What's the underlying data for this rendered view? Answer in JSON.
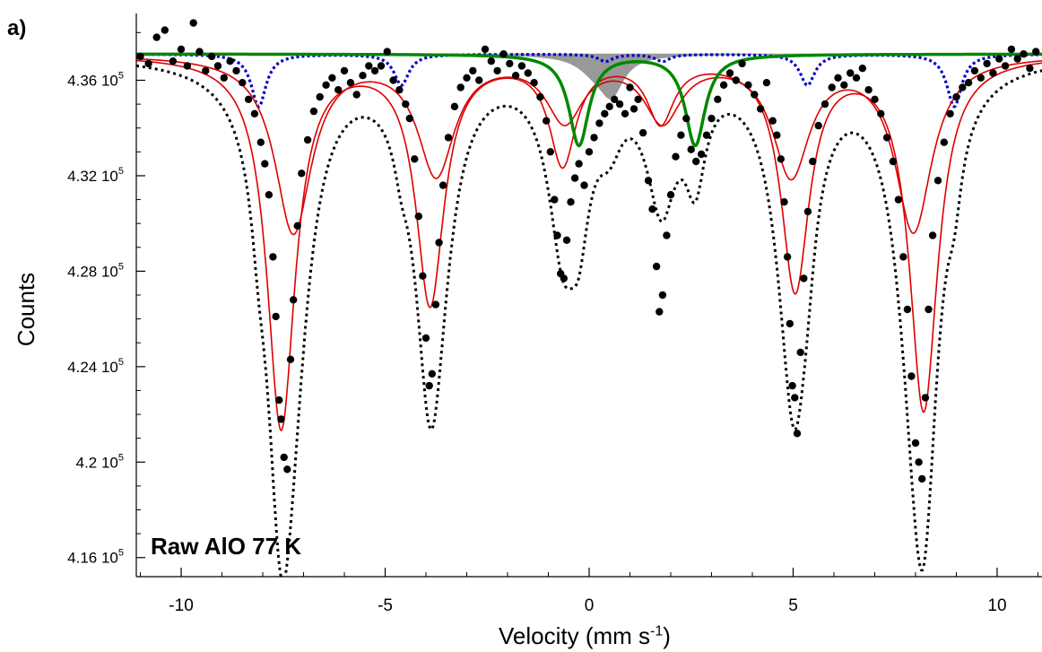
{
  "panel_label": "a)",
  "chart_data": {
    "type": "scatter",
    "title": "",
    "annotation": "Raw AlO 77 K",
    "xlabel_main": "Velocity (mm s",
    "xlabel_exp": "-1",
    "xlabel_close": ")",
    "ylabel": "Counts",
    "xlim": [
      -11.1,
      11.1
    ],
    "ylim": [
      415200,
      438800
    ],
    "x_ticks": [
      -10,
      -5,
      0,
      5,
      10
    ],
    "x_tick_labels": [
      "-10",
      "-5",
      "0",
      "5",
      "10"
    ],
    "y_ticks": [
      416000,
      420000,
      424000,
      428000,
      432000,
      436000
    ],
    "y_tick_labels": [
      {
        "mant": "4.16",
        "exp": "5"
      },
      {
        "mant": "4.2",
        "exp": "5"
      },
      {
        "mant": "4.24",
        "exp": "5"
      },
      {
        "mant": "4.28",
        "exp": "5"
      },
      {
        "mant": "4.32",
        "exp": "5"
      },
      {
        "mant": "4.36",
        "exp": "5"
      }
    ],
    "grid": false,
    "baseline": 437100,
    "colors": {
      "data": "#000000",
      "total_fit": "#000000",
      "sextet": "#dd0000",
      "doublet": "#008800",
      "minor_sextet": "#0000cc",
      "shaded": "#999999"
    },
    "components": [
      {
        "name": "sextet A",
        "style": "sextet",
        "lines": [
          {
            "x": -7.55,
            "depth": 15600,
            "w": 0.42
          },
          {
            "x": -3.9,
            "depth": 10300,
            "w": 0.42
          },
          {
            "x": -0.65,
            "depth": 4400,
            "w": 0.4
          },
          {
            "x": 1.75,
            "depth": 2600,
            "w": 0.4
          },
          {
            "x": 5.05,
            "depth": 9700,
            "w": 0.42
          },
          {
            "x": 8.2,
            "depth": 14800,
            "w": 0.42
          }
        ]
      },
      {
        "name": "sextet B",
        "style": "sextet",
        "lines": [
          {
            "x": -7.25,
            "depth": 7400,
            "w": 0.55
          },
          {
            "x": -3.75,
            "depth": 4900,
            "w": 0.55
          },
          {
            "x": -0.6,
            "depth": 2600,
            "w": 0.55
          },
          {
            "x": 1.8,
            "depth": 2600,
            "w": 0.55
          },
          {
            "x": 4.95,
            "depth": 4900,
            "w": 0.55
          },
          {
            "x": 7.95,
            "depth": 7300,
            "w": 0.55
          }
        ]
      },
      {
        "name": "doublet",
        "style": "doublet",
        "lines": [
          {
            "x": -0.25,
            "depth": 3800,
            "w": 0.3
          },
          {
            "x": 2.6,
            "depth": 3800,
            "w": 0.3
          }
        ]
      },
      {
        "name": "minor sextet",
        "style": "minor_sextet",
        "lines": [
          {
            "x": -8.1,
            "depth": 2200,
            "w": 0.22
          },
          {
            "x": -4.6,
            "depth": 1300,
            "w": 0.22
          },
          {
            "x": 0.4,
            "depth": 300,
            "w": 0.22
          },
          {
            "x": 1.8,
            "depth": 300,
            "w": 0.22
          },
          {
            "x": 5.35,
            "depth": 1300,
            "w": 0.22
          },
          {
            "x": 8.95,
            "depth": 2200,
            "w": 0.22
          }
        ]
      },
      {
        "name": "shaded",
        "style": "shaded",
        "lines": [
          {
            "x": 0.55,
            "depth": 1500,
            "w": 0.35
          },
          {
            "x": 0.15,
            "depth": 600,
            "w": 0.5
          }
        ]
      }
    ],
    "data_points": [
      {
        "x": -11.0,
        "y": 437000
      },
      {
        "x": -10.8,
        "y": 436700
      },
      {
        "x": -10.6,
        "y": 437800
      },
      {
        "x": -10.4,
        "y": 438100
      },
      {
        "x": -10.2,
        "y": 436800
      },
      {
        "x": -10.0,
        "y": 437300
      },
      {
        "x": -9.85,
        "y": 436600
      },
      {
        "x": -9.7,
        "y": 438400
      },
      {
        "x": -9.55,
        "y": 437200
      },
      {
        "x": -9.4,
        "y": 436400
      },
      {
        "x": -9.25,
        "y": 437000
      },
      {
        "x": -9.1,
        "y": 436600
      },
      {
        "x": -8.95,
        "y": 436100
      },
      {
        "x": -8.8,
        "y": 436800
      },
      {
        "x": -8.65,
        "y": 436400
      },
      {
        "x": -8.5,
        "y": 435900
      },
      {
        "x": -8.35,
        "y": 435200
      },
      {
        "x": -8.2,
        "y": 434600
      },
      {
        "x": -8.05,
        "y": 433400
      },
      {
        "x": -7.95,
        "y": 432500
      },
      {
        "x": -7.85,
        "y": 431200
      },
      {
        "x": -7.75,
        "y": 428600
      },
      {
        "x": -7.68,
        "y": 426100
      },
      {
        "x": -7.6,
        "y": 422600
      },
      {
        "x": -7.55,
        "y": 421800
      },
      {
        "x": -7.48,
        "y": 420200
      },
      {
        "x": -7.4,
        "y": 419700
      },
      {
        "x": -7.32,
        "y": 424300
      },
      {
        "x": -7.25,
        "y": 426800
      },
      {
        "x": -7.15,
        "y": 429900
      },
      {
        "x": -7.05,
        "y": 432100
      },
      {
        "x": -6.9,
        "y": 433500
      },
      {
        "x": -6.75,
        "y": 434700
      },
      {
        "x": -6.6,
        "y": 435300
      },
      {
        "x": -6.45,
        "y": 435800
      },
      {
        "x": -6.3,
        "y": 436100
      },
      {
        "x": -6.15,
        "y": 435600
      },
      {
        "x": -6.0,
        "y": 436400
      },
      {
        "x": -5.85,
        "y": 435900
      },
      {
        "x": -5.7,
        "y": 435400
      },
      {
        "x": -5.55,
        "y": 436200
      },
      {
        "x": -5.4,
        "y": 436600
      },
      {
        "x": -5.25,
        "y": 436400
      },
      {
        "x": -5.1,
        "y": 436600
      },
      {
        "x": -4.95,
        "y": 437200
      },
      {
        "x": -4.8,
        "y": 436000
      },
      {
        "x": -4.65,
        "y": 435600
      },
      {
        "x": -4.5,
        "y": 435000
      },
      {
        "x": -4.4,
        "y": 434400
      },
      {
        "x": -4.28,
        "y": 432700
      },
      {
        "x": -4.18,
        "y": 430300
      },
      {
        "x": -4.08,
        "y": 427800
      },
      {
        "x": -4.0,
        "y": 425200
      },
      {
        "x": -3.92,
        "y": 423200
      },
      {
        "x": -3.85,
        "y": 423700
      },
      {
        "x": -3.76,
        "y": 426600
      },
      {
        "x": -3.68,
        "y": 429200
      },
      {
        "x": -3.58,
        "y": 431600
      },
      {
        "x": -3.45,
        "y": 433600
      },
      {
        "x": -3.3,
        "y": 434900
      },
      {
        "x": -3.15,
        "y": 435700
      },
      {
        "x": -3.0,
        "y": 436100
      },
      {
        "x": -2.85,
        "y": 436400
      },
      {
        "x": -2.7,
        "y": 436000
      },
      {
        "x": -2.55,
        "y": 437300
      },
      {
        "x": -2.4,
        "y": 436800
      },
      {
        "x": -2.25,
        "y": 436400
      },
      {
        "x": -2.1,
        "y": 437100
      },
      {
        "x": -1.95,
        "y": 436700
      },
      {
        "x": -1.8,
        "y": 436200
      },
      {
        "x": -1.65,
        "y": 436600
      },
      {
        "x": -1.5,
        "y": 436300
      },
      {
        "x": -1.35,
        "y": 435900
      },
      {
        "x": -1.2,
        "y": 435300
      },
      {
        "x": -1.05,
        "y": 434300
      },
      {
        "x": -0.95,
        "y": 433000
      },
      {
        "x": -0.85,
        "y": 431000
      },
      {
        "x": -0.78,
        "y": 429500
      },
      {
        "x": -0.7,
        "y": 427900
      },
      {
        "x": -0.62,
        "y": 427700
      },
      {
        "x": -0.55,
        "y": 429300
      },
      {
        "x": -0.45,
        "y": 430900
      },
      {
        "x": -0.35,
        "y": 431900
      },
      {
        "x": -0.25,
        "y": 432500
      },
      {
        "x": -0.12,
        "y": 431600
      },
      {
        "x": 0.0,
        "y": 433000
      },
      {
        "x": 0.12,
        "y": 433600
      },
      {
        "x": 0.25,
        "y": 434200
      },
      {
        "x": 0.38,
        "y": 434600
      },
      {
        "x": 0.5,
        "y": 434900
      },
      {
        "x": 0.62,
        "y": 435200
      },
      {
        "x": 0.75,
        "y": 435000
      },
      {
        "x": 0.88,
        "y": 434600
      },
      {
        "x": 1.0,
        "y": 435700
      },
      {
        "x": 1.1,
        "y": 434800
      },
      {
        "x": 1.2,
        "y": 435200
      },
      {
        "x": 1.32,
        "y": 433800
      },
      {
        "x": 1.45,
        "y": 431800
      },
      {
        "x": 1.55,
        "y": 430600
      },
      {
        "x": 1.65,
        "y": 428200
      },
      {
        "x": 1.72,
        "y": 426300
      },
      {
        "x": 1.8,
        "y": 427000
      },
      {
        "x": 1.9,
        "y": 429500
      },
      {
        "x": 2.0,
        "y": 431200
      },
      {
        "x": 2.12,
        "y": 432800
      },
      {
        "x": 2.25,
        "y": 433700
      },
      {
        "x": 2.38,
        "y": 434400
      },
      {
        "x": 2.5,
        "y": 433100
      },
      {
        "x": 2.62,
        "y": 432600
      },
      {
        "x": 2.75,
        "y": 432900
      },
      {
        "x": 2.88,
        "y": 433700
      },
      {
        "x": 3.0,
        "y": 434400
      },
      {
        "x": 3.15,
        "y": 435200
      },
      {
        "x": 3.3,
        "y": 435800
      },
      {
        "x": 3.45,
        "y": 436300
      },
      {
        "x": 3.6,
        "y": 436000
      },
      {
        "x": 3.75,
        "y": 436700
      },
      {
        "x": 3.9,
        "y": 435800
      },
      {
        "x": 4.05,
        "y": 435400
      },
      {
        "x": 4.2,
        "y": 434800
      },
      {
        "x": 4.35,
        "y": 435900
      },
      {
        "x": 4.5,
        "y": 434300
      },
      {
        "x": 4.6,
        "y": 433700
      },
      {
        "x": 4.7,
        "y": 432700
      },
      {
        "x": 4.78,
        "y": 430900
      },
      {
        "x": 4.86,
        "y": 428600
      },
      {
        "x": 4.92,
        "y": 425800
      },
      {
        "x": 4.98,
        "y": 423200
      },
      {
        "x": 5.04,
        "y": 422700
      },
      {
        "x": 5.1,
        "y": 421200
      },
      {
        "x": 5.18,
        "y": 424600
      },
      {
        "x": 5.26,
        "y": 427700
      },
      {
        "x": 5.36,
        "y": 430500
      },
      {
        "x": 5.48,
        "y": 432600
      },
      {
        "x": 5.62,
        "y": 434100
      },
      {
        "x": 5.78,
        "y": 435000
      },
      {
        "x": 5.95,
        "y": 435700
      },
      {
        "x": 6.1,
        "y": 436100
      },
      {
        "x": 6.25,
        "y": 435800
      },
      {
        "x": 6.4,
        "y": 436300
      },
      {
        "x": 6.55,
        "y": 436100
      },
      {
        "x": 6.7,
        "y": 436500
      },
      {
        "x": 6.85,
        "y": 435600
      },
      {
        "x": 7.0,
        "y": 435200
      },
      {
        "x": 7.15,
        "y": 434600
      },
      {
        "x": 7.3,
        "y": 433600
      },
      {
        "x": 7.45,
        "y": 432600
      },
      {
        "x": 7.58,
        "y": 431000
      },
      {
        "x": 7.7,
        "y": 428600
      },
      {
        "x": 7.8,
        "y": 426400
      },
      {
        "x": 7.9,
        "y": 423600
      },
      {
        "x": 8.0,
        "y": 420800
      },
      {
        "x": 8.08,
        "y": 420000
      },
      {
        "x": 8.16,
        "y": 419300
      },
      {
        "x": 8.24,
        "y": 422700
      },
      {
        "x": 8.32,
        "y": 426400
      },
      {
        "x": 8.42,
        "y": 429500
      },
      {
        "x": 8.55,
        "y": 431800
      },
      {
        "x": 8.7,
        "y": 433400
      },
      {
        "x": 8.85,
        "y": 434600
      },
      {
        "x": 9.0,
        "y": 435300
      },
      {
        "x": 9.15,
        "y": 435700
      },
      {
        "x": 9.3,
        "y": 435900
      },
      {
        "x": 9.45,
        "y": 436400
      },
      {
        "x": 9.6,
        "y": 436100
      },
      {
        "x": 9.75,
        "y": 436700
      },
      {
        "x": 9.9,
        "y": 436300
      },
      {
        "x": 10.05,
        "y": 436900
      },
      {
        "x": 10.2,
        "y": 436600
      },
      {
        "x": 10.35,
        "y": 437300
      },
      {
        "x": 10.5,
        "y": 436900
      },
      {
        "x": 10.65,
        "y": 437100
      },
      {
        "x": 10.8,
        "y": 436500
      },
      {
        "x": 10.95,
        "y": 437200
      }
    ]
  }
}
